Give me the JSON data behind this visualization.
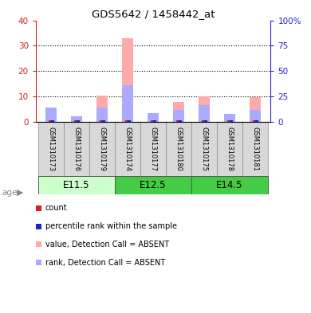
{
  "title": "GDS5642 / 1458442_at",
  "samples": [
    "GSM1310173",
    "GSM1310176",
    "GSM1310179",
    "GSM1310174",
    "GSM1310177",
    "GSM1310180",
    "GSM1310175",
    "GSM1310178",
    "GSM1310181"
  ],
  "absent_value": [
    5.0,
    2.2,
    10.2,
    33.0,
    3.5,
    7.8,
    10.0,
    3.2,
    9.8
  ],
  "absent_rank": [
    5.5,
    2.2,
    5.5,
    14.5,
    3.5,
    4.5,
    6.5,
    3.2,
    4.5
  ],
  "ylim_left": [
    0,
    40
  ],
  "ylim_right": [
    0,
    100
  ],
  "yticks_left": [
    0,
    10,
    20,
    30,
    40
  ],
  "yticks_right": [
    0,
    25,
    50,
    75,
    100
  ],
  "ytick_labels_right": [
    "0",
    "25",
    "50",
    "75",
    "100%"
  ],
  "color_absent_value": "#ffaaaa",
  "color_absent_rank": "#aaaaff",
  "color_present_value": "#cc2222",
  "color_present_rank": "#2222cc",
  "left_tick_color": "#cc2222",
  "right_tick_color": "#2222cc",
  "group_configs": [
    {
      "indices": [
        0,
        1,
        2
      ],
      "label": "E11.5",
      "color": "#ccffcc"
    },
    {
      "indices": [
        3,
        4,
        5
      ],
      "label": "E12.5",
      "color": "#44cc44"
    },
    {
      "indices": [
        6,
        7,
        8
      ],
      "label": "E14.5",
      "color": "#44cc44"
    }
  ],
  "legend_items": [
    {
      "color": "#cc2222",
      "label": "count"
    },
    {
      "color": "#2222cc",
      "label": "percentile rank within the sample"
    },
    {
      "color": "#ffaaaa",
      "label": "value, Detection Call = ABSENT"
    },
    {
      "color": "#aaaaff",
      "label": "rank, Detection Call = ABSENT"
    }
  ],
  "bg_color": "#ffffff"
}
